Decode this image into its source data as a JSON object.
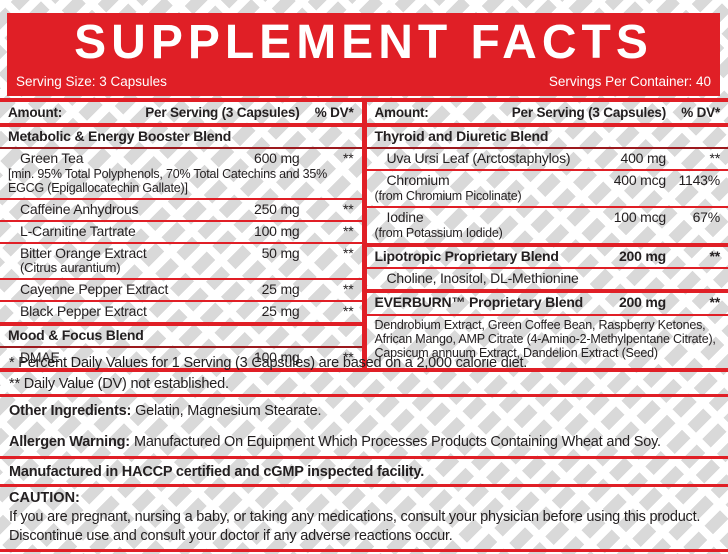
{
  "header": {
    "title": "SUPPLEMENT FACTS",
    "serving_size": "Serving Size: 3 Capsules",
    "servings_per_container": "Servings Per Container: 40"
  },
  "table": {
    "column_header": {
      "amount": "Amount:",
      "per_serving": "Per Serving (3 Capsules)",
      "dv": "% DV*"
    },
    "left": {
      "rows": [
        {
          "type": "blend",
          "name": "Metabolic & Energy Booster Blend"
        },
        {
          "type": "ingredient",
          "name": "Green Tea",
          "amount": "600 mg",
          "dv": "**",
          "note": "[min. 95% Total Polyphenols, 70% Total Catechins and 35% EGCG (Epigallocatechin Gallate)]"
        },
        {
          "type": "ingredient",
          "name": "Caffeine Anhydrous",
          "amount": "250 mg",
          "dv": "**"
        },
        {
          "type": "ingredient",
          "name": "L-Carnitine Tartrate",
          "amount": "100 mg",
          "dv": "**"
        },
        {
          "type": "ingredient",
          "name": "Bitter Orange Extract",
          "sub": "(Citrus aurantium)",
          "amount": "50 mg",
          "dv": "**"
        },
        {
          "type": "ingredient",
          "name": "Cayenne Pepper Extract",
          "amount": "25 mg",
          "dv": "**"
        },
        {
          "type": "ingredient",
          "name": "Black Pepper Extract",
          "amount": "25 mg",
          "dv": "**"
        },
        {
          "type": "blend",
          "name": "Mood & Focus Blend"
        },
        {
          "type": "ingredient",
          "name": "DMAE",
          "amount": "100 mg",
          "dv": "**"
        }
      ]
    },
    "right": {
      "rows": [
        {
          "type": "blend",
          "name": "Thyroid and Diuretic Blend"
        },
        {
          "type": "ingredient",
          "name": "Uva Ursi Leaf (Arctostaphylos)",
          "amount": "400 mg",
          "dv": "**"
        },
        {
          "type": "ingredient",
          "name": "Chromium",
          "note": "(from Chromium Picolinate)",
          "amount": "400 mcg",
          "dv": "1143%"
        },
        {
          "type": "ingredient",
          "name": "Iodine",
          "note": "(from Potassium Iodide)",
          "amount": "100 mcg",
          "dv": "67%"
        },
        {
          "type": "blend",
          "name": "Lipotropic Proprietary Blend",
          "amount": "200 mg",
          "dv": "**"
        },
        {
          "type": "list",
          "text": "Choline, Inositol, DL-Methionine"
        },
        {
          "type": "blend",
          "name": "EVERBURN™ Proprietary Blend",
          "amount": "200 mg",
          "dv": "**"
        },
        {
          "type": "note",
          "text": "Dendrobium Extract, Green Coffee Bean, Raspberry Ketones, African Mango, AMP Citrate (4-Amino-2-Methylpentane Citrate), Capsicum annuum Extract, Dandelion Extract (Seed)"
        }
      ]
    }
  },
  "footnotes": {
    "dv_note": "* Percent Daily Values for 1 Serving (3 Capsules) are based on a 2,000 calorie diet.",
    "dv_not_established": "** Daily Value (DV) not established.",
    "other_ingredients_label": "Other Ingredients:",
    "other_ingredients": "Gelatin, Magnesium Stearate.",
    "allergen_label": "Allergen Warning:",
    "allergen": "Manufactured On Equipment Which Processes Products Containing Wheat and Soy.",
    "facility": "Manufactured in HACCP certified and cGMP inspected facility.",
    "caution_label": "CAUTION:",
    "caution": "If you are pregnant, nursing a baby, or taking any medications, consult your physician before using this product. Discontinue use and consult your doctor if any adverse reactions occur."
  }
}
